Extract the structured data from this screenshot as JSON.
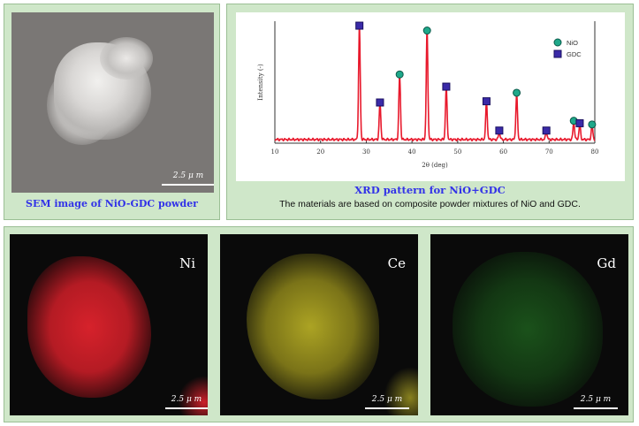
{
  "sem_panel": {
    "scale_label": "2.5 μ m",
    "caption": "SEM image of NiO-GDC powder"
  },
  "xrd_panel": {
    "caption": "XRD pattern for NiO+GDC",
    "note": "The materials are based on composite powder mixtures of NiO and GDC."
  },
  "chart_data": {
    "type": "line",
    "title": "XRD pattern for NiO+GDC",
    "xlabel": "2θ (deg)",
    "ylabel": "Intensity (-)",
    "xlim": [
      10,
      80
    ],
    "ylim": [
      0,
      100
    ],
    "xticks": [
      10,
      20,
      30,
      40,
      50,
      60,
      70,
      80
    ],
    "x_tick_labels": [
      "10",
      "20",
      "30",
      "40",
      "50",
      "60",
      "70",
      "80"
    ],
    "line_color": "#e8192c",
    "series": [
      {
        "name": "XRD pattern",
        "peaks": [
          {
            "x": 28.5,
            "y": 92,
            "phase": "GDC"
          },
          {
            "x": 33.0,
            "y": 29,
            "phase": "GDC"
          },
          {
            "x": 37.3,
            "y": 52,
            "phase": "NiO"
          },
          {
            "x": 43.3,
            "y": 88,
            "phase": "NiO"
          },
          {
            "x": 47.5,
            "y": 42,
            "phase": "GDC"
          },
          {
            "x": 56.3,
            "y": 30,
            "phase": "GDC"
          },
          {
            "x": 59.1,
            "y": 6,
            "phase": "GDC"
          },
          {
            "x": 62.9,
            "y": 37,
            "phase": "NiO"
          },
          {
            "x": 69.4,
            "y": 6,
            "phase": "GDC"
          },
          {
            "x": 75.4,
            "y": 14,
            "phase": "NiO"
          },
          {
            "x": 76.7,
            "y": 12,
            "phase": "GDC"
          },
          {
            "x": 79.4,
            "y": 11,
            "phase": "NiO"
          }
        ]
      }
    ],
    "legend": [
      {
        "label": "NiO",
        "marker": "circle",
        "color": "#1fa88a"
      },
      {
        "label": "GDC",
        "marker": "square",
        "color": "#3a2aa8"
      }
    ],
    "legend_position": "top-right"
  },
  "maps": [
    {
      "element": "Ni",
      "color": "#e0232e",
      "scale_label": "2.5 μ m"
    },
    {
      "element": "Ce",
      "color": "#c8c02a",
      "scale_label": "2.5 μ m"
    },
    {
      "element": "Gd",
      "color": "#2a8a2a",
      "scale_label": "2.5 μ m"
    }
  ]
}
